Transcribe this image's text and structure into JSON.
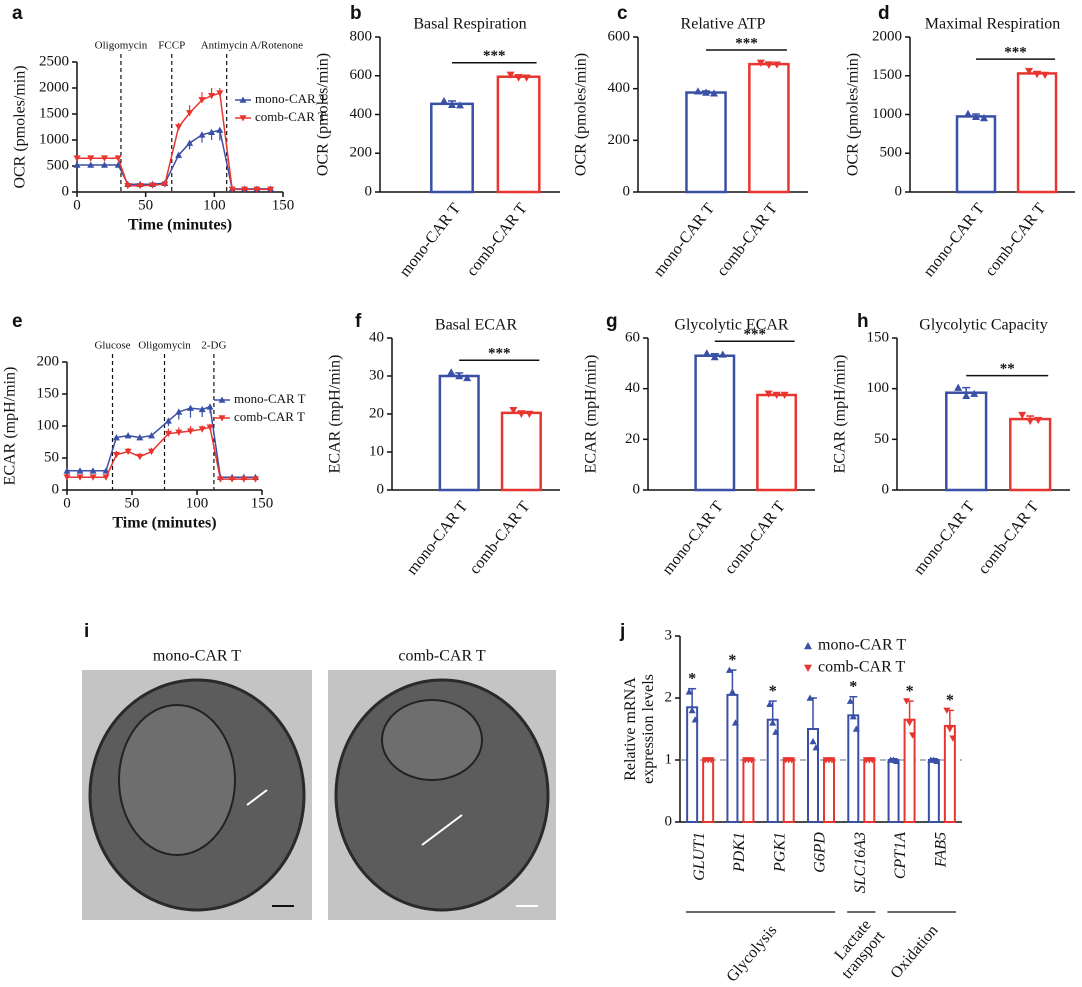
{
  "chart_data": [
    {
      "type": "line",
      "panel": "a",
      "xlabel": "Time (minutes)",
      "ylabel": "OCR (pmoles/min)",
      "x": [
        0,
        10,
        20,
        30,
        37,
        46,
        55,
        64,
        74,
        82,
        91,
        98,
        104,
        113,
        122,
        131,
        141
      ],
      "xlim": [
        0,
        150
      ],
      "xticks": [
        0,
        50,
        100,
        150
      ],
      "ylim": [
        0,
        2500
      ],
      "yticks": [
        0,
        500,
        1000,
        1500,
        2000,
        2500
      ],
      "phases": [
        {
          "label": "Oligomycin",
          "x": 32
        },
        {
          "label": "FCCP",
          "x": 69
        },
        {
          "label": "Antimycin A/Rotenone",
          "x": 109
        }
      ],
      "series": [
        {
          "name": "mono-CAR T",
          "color": "#3a4fa6",
          "values": [
            520,
            520,
            520,
            520,
            150,
            150,
            150,
            170,
            710,
            940,
            1100,
            1150,
            1190,
            60,
            60,
            60,
            60
          ],
          "errors": [
            30,
            30,
            30,
            30,
            20,
            20,
            20,
            20,
            60,
            120,
            150,
            150,
            200,
            10,
            10,
            10,
            10
          ]
        },
        {
          "name": "comb-CAR T",
          "color": "#e8352f",
          "values": [
            650,
            650,
            650,
            650,
            120,
            120,
            130,
            150,
            1250,
            1520,
            1770,
            1850,
            1900,
            50,
            50,
            50,
            50
          ],
          "errors": [
            40,
            40,
            40,
            40,
            20,
            20,
            20,
            20,
            80,
            150,
            150,
            150,
            100,
            10,
            10,
            10,
            10
          ]
        }
      ]
    },
    {
      "type": "bar",
      "panel": "b",
      "title": "Basal Respiration",
      "ylabel": "OCR (pmoles/min)",
      "categories": [
        "mono-CAR T",
        "comb-CAR T"
      ],
      "colors": [
        "#3a4fa6",
        "#e8352f"
      ],
      "values": [
        455,
        595
      ],
      "errors": [
        15,
        10
      ],
      "points": [
        [
          470,
          450,
          448
        ],
        [
          605,
          590,
          590
        ]
      ],
      "significance": "***",
      "ylim": [
        0,
        800
      ],
      "yticks": [
        0,
        200,
        400,
        600,
        800
      ]
    },
    {
      "type": "bar",
      "panel": "c",
      "title": "Relative ATP",
      "ylabel": "OCR (pmoles/min)",
      "categories": [
        "mono-CAR T",
        "comb-CAR T"
      ],
      "colors": [
        "#3a4fa6",
        "#e8352f"
      ],
      "values": [
        385,
        495
      ],
      "errors": [
        6,
        8
      ],
      "points": [
        [
          390,
          385,
          382
        ],
        [
          500,
          492,
          493
        ]
      ],
      "significance": "***",
      "ylim": [
        0,
        600
      ],
      "yticks": [
        0,
        200,
        400,
        600
      ]
    },
    {
      "type": "bar",
      "panel": "d",
      "title": "Maximal Respiration",
      "ylabel": "OCR (pmoles/min)",
      "categories": [
        "mono-CAR T",
        "comb-CAR T"
      ],
      "colors": [
        "#3a4fa6",
        "#e8352f"
      ],
      "values": [
        975,
        1530
      ],
      "errors": [
        30,
        25
      ],
      "points": [
        [
          1010,
          970,
          955
        ],
        [
          1560,
          1520,
          1510
        ]
      ],
      "significance": "***",
      "ylim": [
        0,
        2000
      ],
      "yticks": [
        0,
        500,
        1000,
        1500,
        2000
      ]
    },
    {
      "type": "line",
      "panel": "e",
      "xlabel": "Time (minutes)",
      "ylabel": "ECAR (mpH/min)",
      "x": [
        0,
        10,
        20,
        30,
        38,
        47,
        56,
        65,
        78,
        86,
        95,
        104,
        110,
        118,
        127,
        136,
        145
      ],
      "xlim": [
        0,
        150
      ],
      "xticks": [
        0,
        50,
        100,
        150
      ],
      "ylim": [
        0,
        200
      ],
      "yticks": [
        0,
        50,
        100,
        150,
        200
      ],
      "phases": [
        {
          "label": "Glucose",
          "x": 35
        },
        {
          "label": "Oligomycin",
          "x": 75
        },
        {
          "label": "2-DG",
          "x": 113
        }
      ],
      "series": [
        {
          "name": "mono-CAR T",
          "color": "#3a4fa6",
          "values": [
            30,
            30,
            30,
            30,
            82,
            85,
            82,
            85,
            108,
            122,
            128,
            126,
            130,
            20,
            20,
            20,
            20
          ],
          "errors": [
            3,
            3,
            3,
            3,
            4,
            4,
            4,
            4,
            8,
            12,
            15,
            12,
            10,
            2,
            2,
            2,
            2
          ]
        },
        {
          "name": "comb-CAR T",
          "color": "#e8352f",
          "values": [
            20,
            20,
            20,
            20,
            55,
            60,
            52,
            60,
            88,
            90,
            92,
            95,
            98,
            17,
            17,
            17,
            17
          ],
          "errors": [
            3,
            3,
            3,
            3,
            6,
            6,
            6,
            6,
            8,
            8,
            8,
            6,
            5,
            2,
            2,
            2,
            2
          ]
        }
      ]
    },
    {
      "type": "bar",
      "panel": "f",
      "title": "Basal ECAR",
      "ylabel": "ECAR (mpH/min)",
      "categories": [
        "mono-CAR T",
        "comb-CAR T"
      ],
      "colors": [
        "#3a4fa6",
        "#e8352f"
      ],
      "values": [
        30,
        20.3
      ],
      "errors": [
        0.8,
        0.5
      ],
      "points": [
        [
          31,
          30,
          29.5
        ],
        [
          21,
          20,
          20
        ]
      ],
      "significance": "***",
      "ylim": [
        0,
        40
      ],
      "yticks": [
        0,
        10,
        20,
        30,
        40
      ]
    },
    {
      "type": "bar",
      "panel": "g",
      "title": "Glycolytic ECAR",
      "ylabel": "ECAR (mpH/min)",
      "categories": [
        "mono-CAR T",
        "comb-CAR T"
      ],
      "colors": [
        "#3a4fa6",
        "#e8352f"
      ],
      "values": [
        53,
        37.5
      ],
      "errors": [
        0.8,
        0.4
      ],
      "points": [
        [
          54,
          52.5,
          53.5
        ],
        [
          38,
          37.5,
          37.5
        ]
      ],
      "significance": "***",
      "ylim": [
        0,
        60
      ],
      "yticks": [
        0,
        20,
        40,
        60
      ]
    },
    {
      "type": "bar",
      "panel": "h",
      "title": "Glycolytic Capacity",
      "ylabel": "ECAR (mpH/min)",
      "categories": [
        "mono-CAR T",
        "comb-CAR T"
      ],
      "colors": [
        "#3a4fa6",
        "#e8352f"
      ],
      "values": [
        96,
        70
      ],
      "errors": [
        5,
        3
      ],
      "points": [
        [
          101,
          93,
          95
        ],
        [
          74,
          68,
          69
        ]
      ],
      "significance": "**",
      "ylim": [
        0,
        150
      ],
      "yticks": [
        0,
        50,
        100,
        150
      ]
    },
    {
      "type": "image",
      "panel": "i",
      "labels": [
        "mono-CAR T",
        "comb-CAR T"
      ]
    },
    {
      "type": "bar",
      "panel": "j",
      "ylabel": "Relative mRNA\nexpression levels",
      "ylim": [
        0,
        3
      ],
      "yticks": [
        0,
        1,
        2,
        3
      ],
      "refline": 1,
      "groups": [
        {
          "name": "Glycolysis",
          "categories": [
            "GLUT1",
            "PDK1",
            "PGK1",
            "G6PD"
          ]
        },
        {
          "name": "Lactate\ntransport",
          "categories": [
            "SLC16A3"
          ]
        },
        {
          "name": "Oxidation",
          "categories": [
            "CPT1A",
            "FAB5"
          ]
        }
      ],
      "series": [
        {
          "name": "mono-CAR T",
          "color": "#3a4fa6",
          "values": [
            1.85,
            2.05,
            1.65,
            1.5,
            1.72,
            1.0,
            1.0
          ],
          "errors": [
            0.3,
            0.4,
            0.3,
            0.5,
            0.3,
            0.02,
            0.02
          ],
          "points": [
            [
              2.1,
              1.8,
              1.65
            ],
            [
              2.45,
              2.1,
              1.6
            ],
            [
              1.9,
              1.6,
              1.45
            ],
            [
              2.0,
              1.3,
              1.2
            ],
            [
              1.95,
              1.7,
              1.5
            ],
            [
              1.0,
              1.0,
              0.98
            ],
            [
              1.0,
              1.0,
              0.98
            ]
          ],
          "significance": [
            "*",
            "*",
            "*",
            null,
            "*",
            null,
            null
          ]
        },
        {
          "name": "comb-CAR T",
          "color": "#e8352f",
          "values": [
            1.0,
            1.0,
            1.0,
            1.0,
            1.0,
            1.65,
            1.55
          ],
          "errors": [
            0.02,
            0.02,
            0.02,
            0.02,
            0.02,
            0.3,
            0.25
          ],
          "points": [
            [
              1,
              1,
              1
            ],
            [
              1,
              1,
              1
            ],
            [
              1,
              1,
              1
            ],
            [
              1,
              1,
              1
            ],
            [
              1,
              1,
              1
            ],
            [
              1.95,
              1.6,
              1.4
            ],
            [
              1.8,
              1.5,
              1.35
            ]
          ],
          "significance": [
            null,
            null,
            null,
            null,
            null,
            "*",
            "*"
          ]
        }
      ]
    }
  ]
}
